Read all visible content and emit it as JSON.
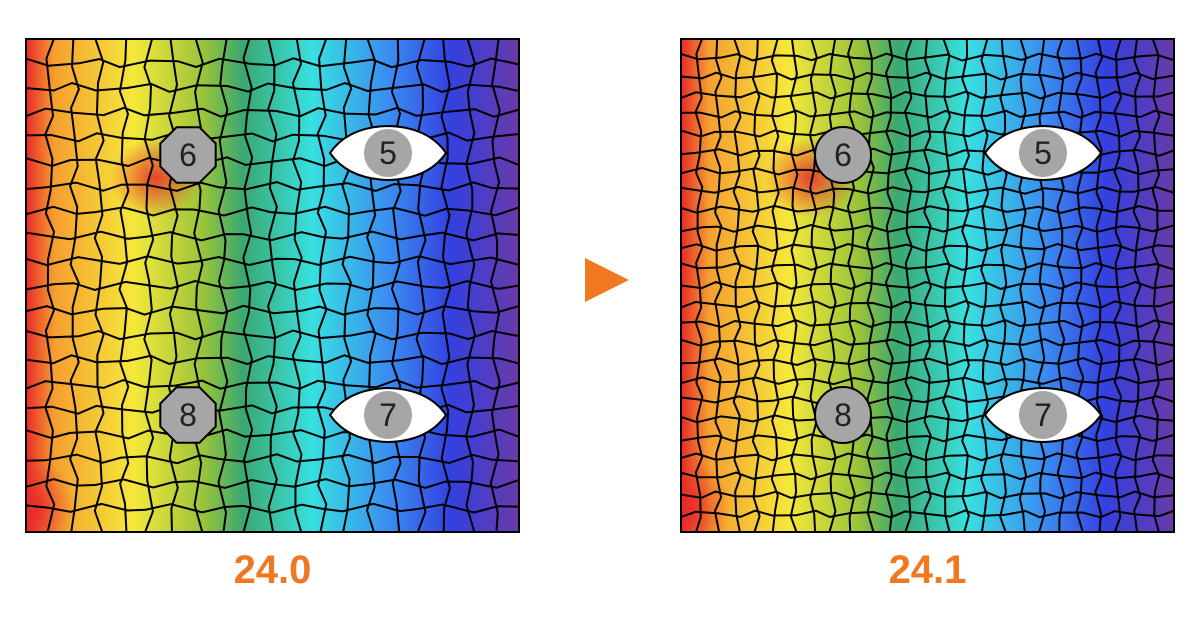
{
  "panels": [
    {
      "version": "24.0",
      "holes": [
        "6",
        "5",
        "8",
        "7"
      ],
      "hole_shape_small": "octagon"
    },
    {
      "version": "24.1",
      "holes": [
        "6",
        "5",
        "8",
        "7"
      ],
      "hole_shape_small": "circle"
    }
  ],
  "arrow": {
    "icon": "play-triangle-icon",
    "color": "#f07820"
  },
  "colors": {
    "label": "#f07820",
    "hole_fill": "#a6a6a6",
    "mesh_line": "#000000",
    "gradient": [
      "#e8262a",
      "#f5a030",
      "#f5e83a",
      "#9ac43a",
      "#3aa870",
      "#38e0e0",
      "#3a8af0",
      "#3340e0",
      "#6a3aa8"
    ]
  }
}
